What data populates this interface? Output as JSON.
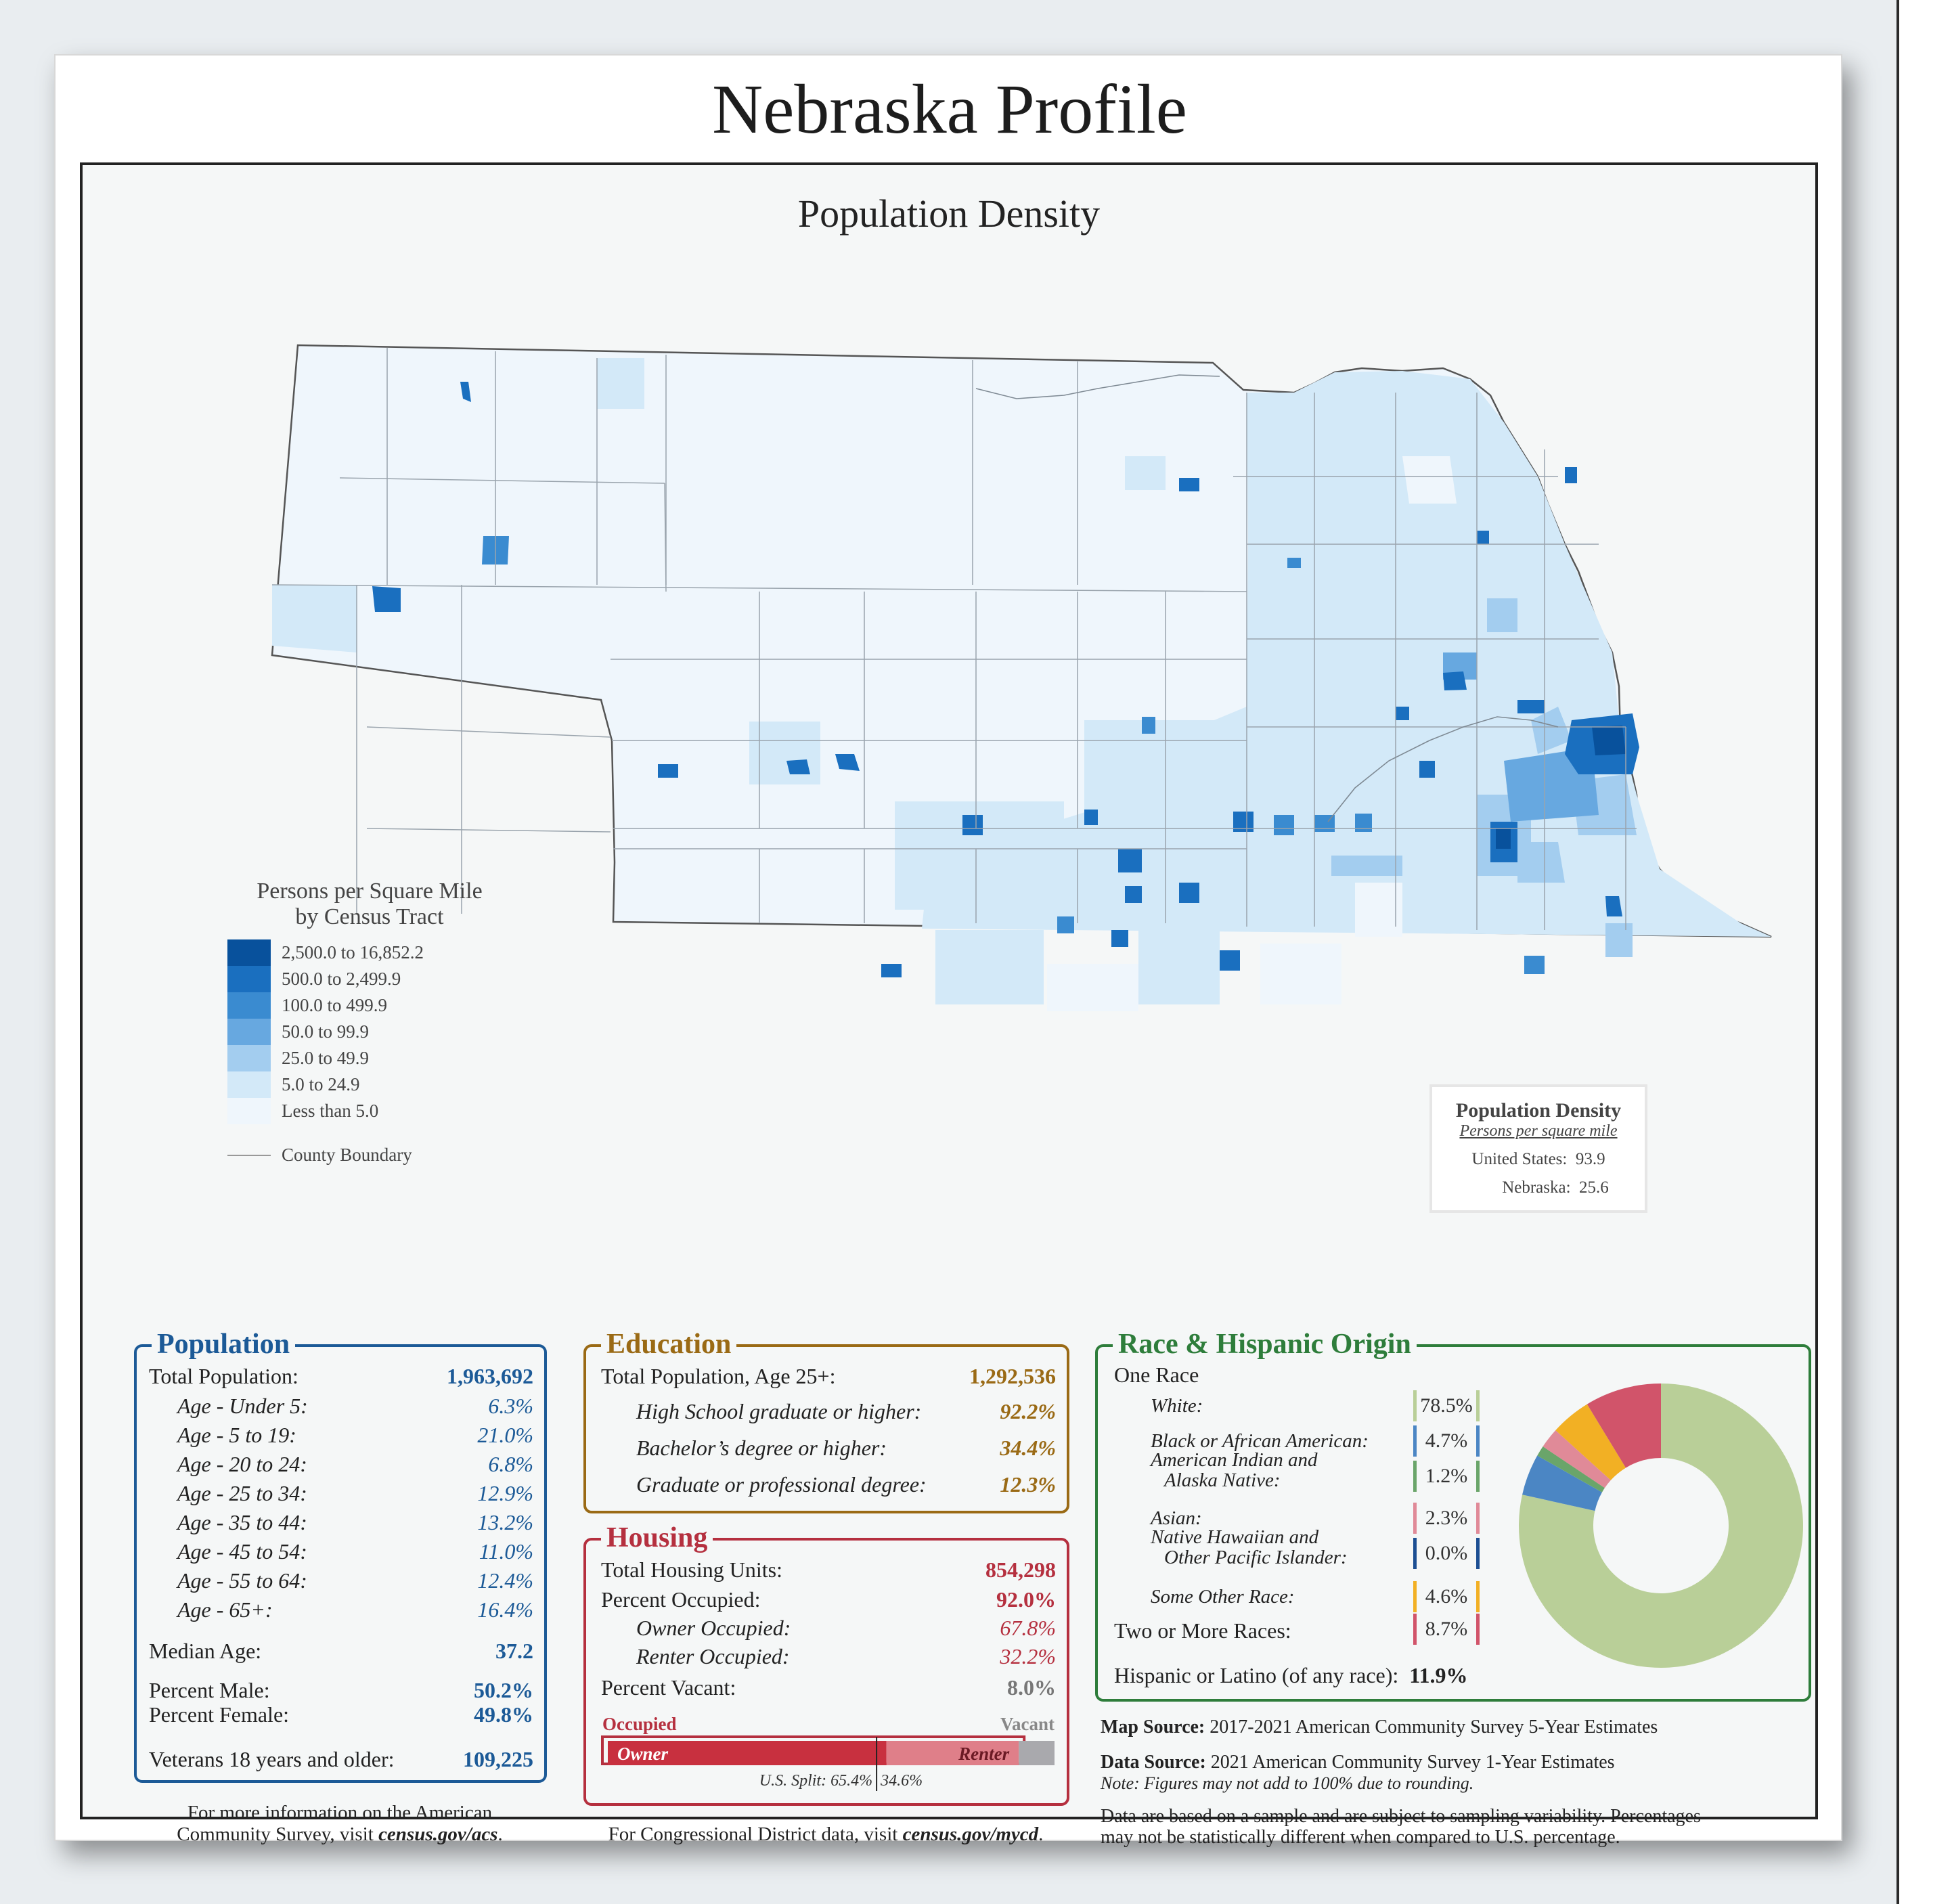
{
  "title": "Nebraska Profile",
  "map": {
    "title": "Population Density",
    "legend": {
      "title_line1": "Persons per Square Mile",
      "title_line2": "by Census Tract",
      "classes": [
        {
          "label": "2,500.0 to 16,852.2",
          "color": "#08519c"
        },
        {
          "label": "500.0 to 2,499.9",
          "color": "#1a6fbf"
        },
        {
          "label": "100.0 to 499.9",
          "color": "#3a8bd0"
        },
        {
          "label": "50.0 to 99.9",
          "color": "#67a8e0"
        },
        {
          "label": "25.0 to 49.9",
          "color": "#a3cdef"
        },
        {
          "label": "5.0 to 24.9",
          "color": "#d3e9f8"
        },
        {
          "label": "Less than 5.0",
          "color": "#eff6fc"
        }
      ],
      "county_boundary_label": "County Boundary"
    },
    "density_box": {
      "title": "Population Density",
      "subtitle": "Persons per square mile",
      "us_label": "United States:",
      "us_value": "93.9",
      "ne_label": "Nebraska:",
      "ne_value": "25.6"
    }
  },
  "population": {
    "heading": "Population",
    "total_label": "Total Population:",
    "total_value": "1,963,692",
    "ages": [
      {
        "label": "Age - Under 5:",
        "value": "6.3%"
      },
      {
        "label": "Age - 5 to 19:",
        "value": "21.0%"
      },
      {
        "label": "Age - 20 to 24:",
        "value": "6.8%"
      },
      {
        "label": "Age - 25 to 34:",
        "value": "12.9%"
      },
      {
        "label": "Age - 35 to 44:",
        "value": "13.2%"
      },
      {
        "label": "Age - 45 to 54:",
        "value": "11.0%"
      },
      {
        "label": "Age - 55 to 64:",
        "value": "12.4%"
      },
      {
        "label": "Age - 65+:",
        "value": "16.4%"
      }
    ],
    "median_age_label": "Median Age:",
    "median_age_value": "37.2",
    "male_label": "Percent Male:",
    "male_value": "50.2%",
    "female_label": "Percent Female:",
    "female_value": "49.8%",
    "veterans_label": "Veterans 18 years and older:",
    "veterans_value": "109,225"
  },
  "education": {
    "heading": "Education",
    "total_label": "Total Population, Age 25+:",
    "total_value": "1,292,536",
    "rows": [
      {
        "label": "High School  graduate or higher:",
        "value": "92.2%"
      },
      {
        "label": "Bachelor’s degree or higher:",
        "value": "34.4%"
      },
      {
        "label": "Graduate or professional degree:",
        "value": "12.3%"
      }
    ]
  },
  "housing": {
    "heading": "Housing",
    "units_label": "Total Housing Units:",
    "units_value": "854,298",
    "occupied_label": "Percent Occupied:",
    "occupied_value": "92.0%",
    "owner_label": "Owner Occupied:",
    "owner_value": "67.8%",
    "renter_label": "Renter Occupied:",
    "renter_value": "32.2%",
    "vacant_label": "Percent Vacant:",
    "vacant_value": "8.0%",
    "bar": {
      "occupied_label": "Occupied",
      "vacant_label": "Vacant",
      "owner_label": "Owner",
      "renter_label": "Renter",
      "occupied_pct": 92.0,
      "owner_pct_of_occupied": 67.8,
      "us_split_label": "U.S. Split: 65.4%",
      "us_split_right": "34.6%",
      "us_split_pct": 65.4,
      "owner_color": "#c8303f",
      "renter_color": "#df7f89",
      "vacant_color": "#a9a9ad"
    }
  },
  "race": {
    "heading": "Race & Hispanic Origin",
    "one_race_label": "One Race",
    "items": [
      {
        "label_line1": "White:",
        "label_line2": "",
        "value": "78.5%",
        "pct": 78.5,
        "color": "#b9cf98"
      },
      {
        "label_line1": "Black or African American:",
        "label_line2": "",
        "value": "4.7%",
        "pct": 4.7,
        "color": "#4b86c4"
      },
      {
        "label_line1": "American Indian and",
        "label_line2": "Alaska Native:",
        "value": "1.2%",
        "pct": 1.2,
        "color": "#6aa56a"
      },
      {
        "label_line1": "Asian:",
        "label_line2": "",
        "value": "2.3%",
        "pct": 2.3,
        "color": "#e08a98"
      },
      {
        "label_line1": "Native Hawaiian and",
        "label_line2": "Other Pacific Islander:",
        "value": "0.0%",
        "pct": 0.0,
        "color": "#1c4f93"
      },
      {
        "label_line1": "Some Other Race:",
        "label_line2": "",
        "value": "4.6%",
        "pct": 4.6,
        "color": "#f2b024"
      }
    ],
    "two_or_more_label": "Two or More Races:",
    "two_or_more_value": "8.7%",
    "two_or_more_pct": 8.7,
    "two_or_more_color": "#d1546a",
    "hispanic_label": "Hispanic or Latino (of any race):",
    "hispanic_value": "11.9%"
  },
  "footer": {
    "acs_line1": "For more information on the American",
    "acs_line2_prefix": "Community Survey, visit ",
    "acs_link": "census.gov/acs",
    "acs_suffix": ".",
    "cd_prefix": "For Congressional District data, visit ",
    "cd_link": "census.gov/mycd",
    "cd_suffix": ".",
    "map_source_label": "Map Source:",
    "map_source_text": " 2017-2021 American Community Survey 5-Year Estimates",
    "data_source_label": "Data Source:",
    "data_source_text": " 2021 American Community Survey 1-Year Estimates",
    "note": "Note: Figures may not add to 100% due to rounding.",
    "disclaimer_line1": "Data are based on a sample and are subject to sampling variability. Percentages",
    "disclaimer_line2": "may not be statistically different when compared to U.S. percentage."
  }
}
